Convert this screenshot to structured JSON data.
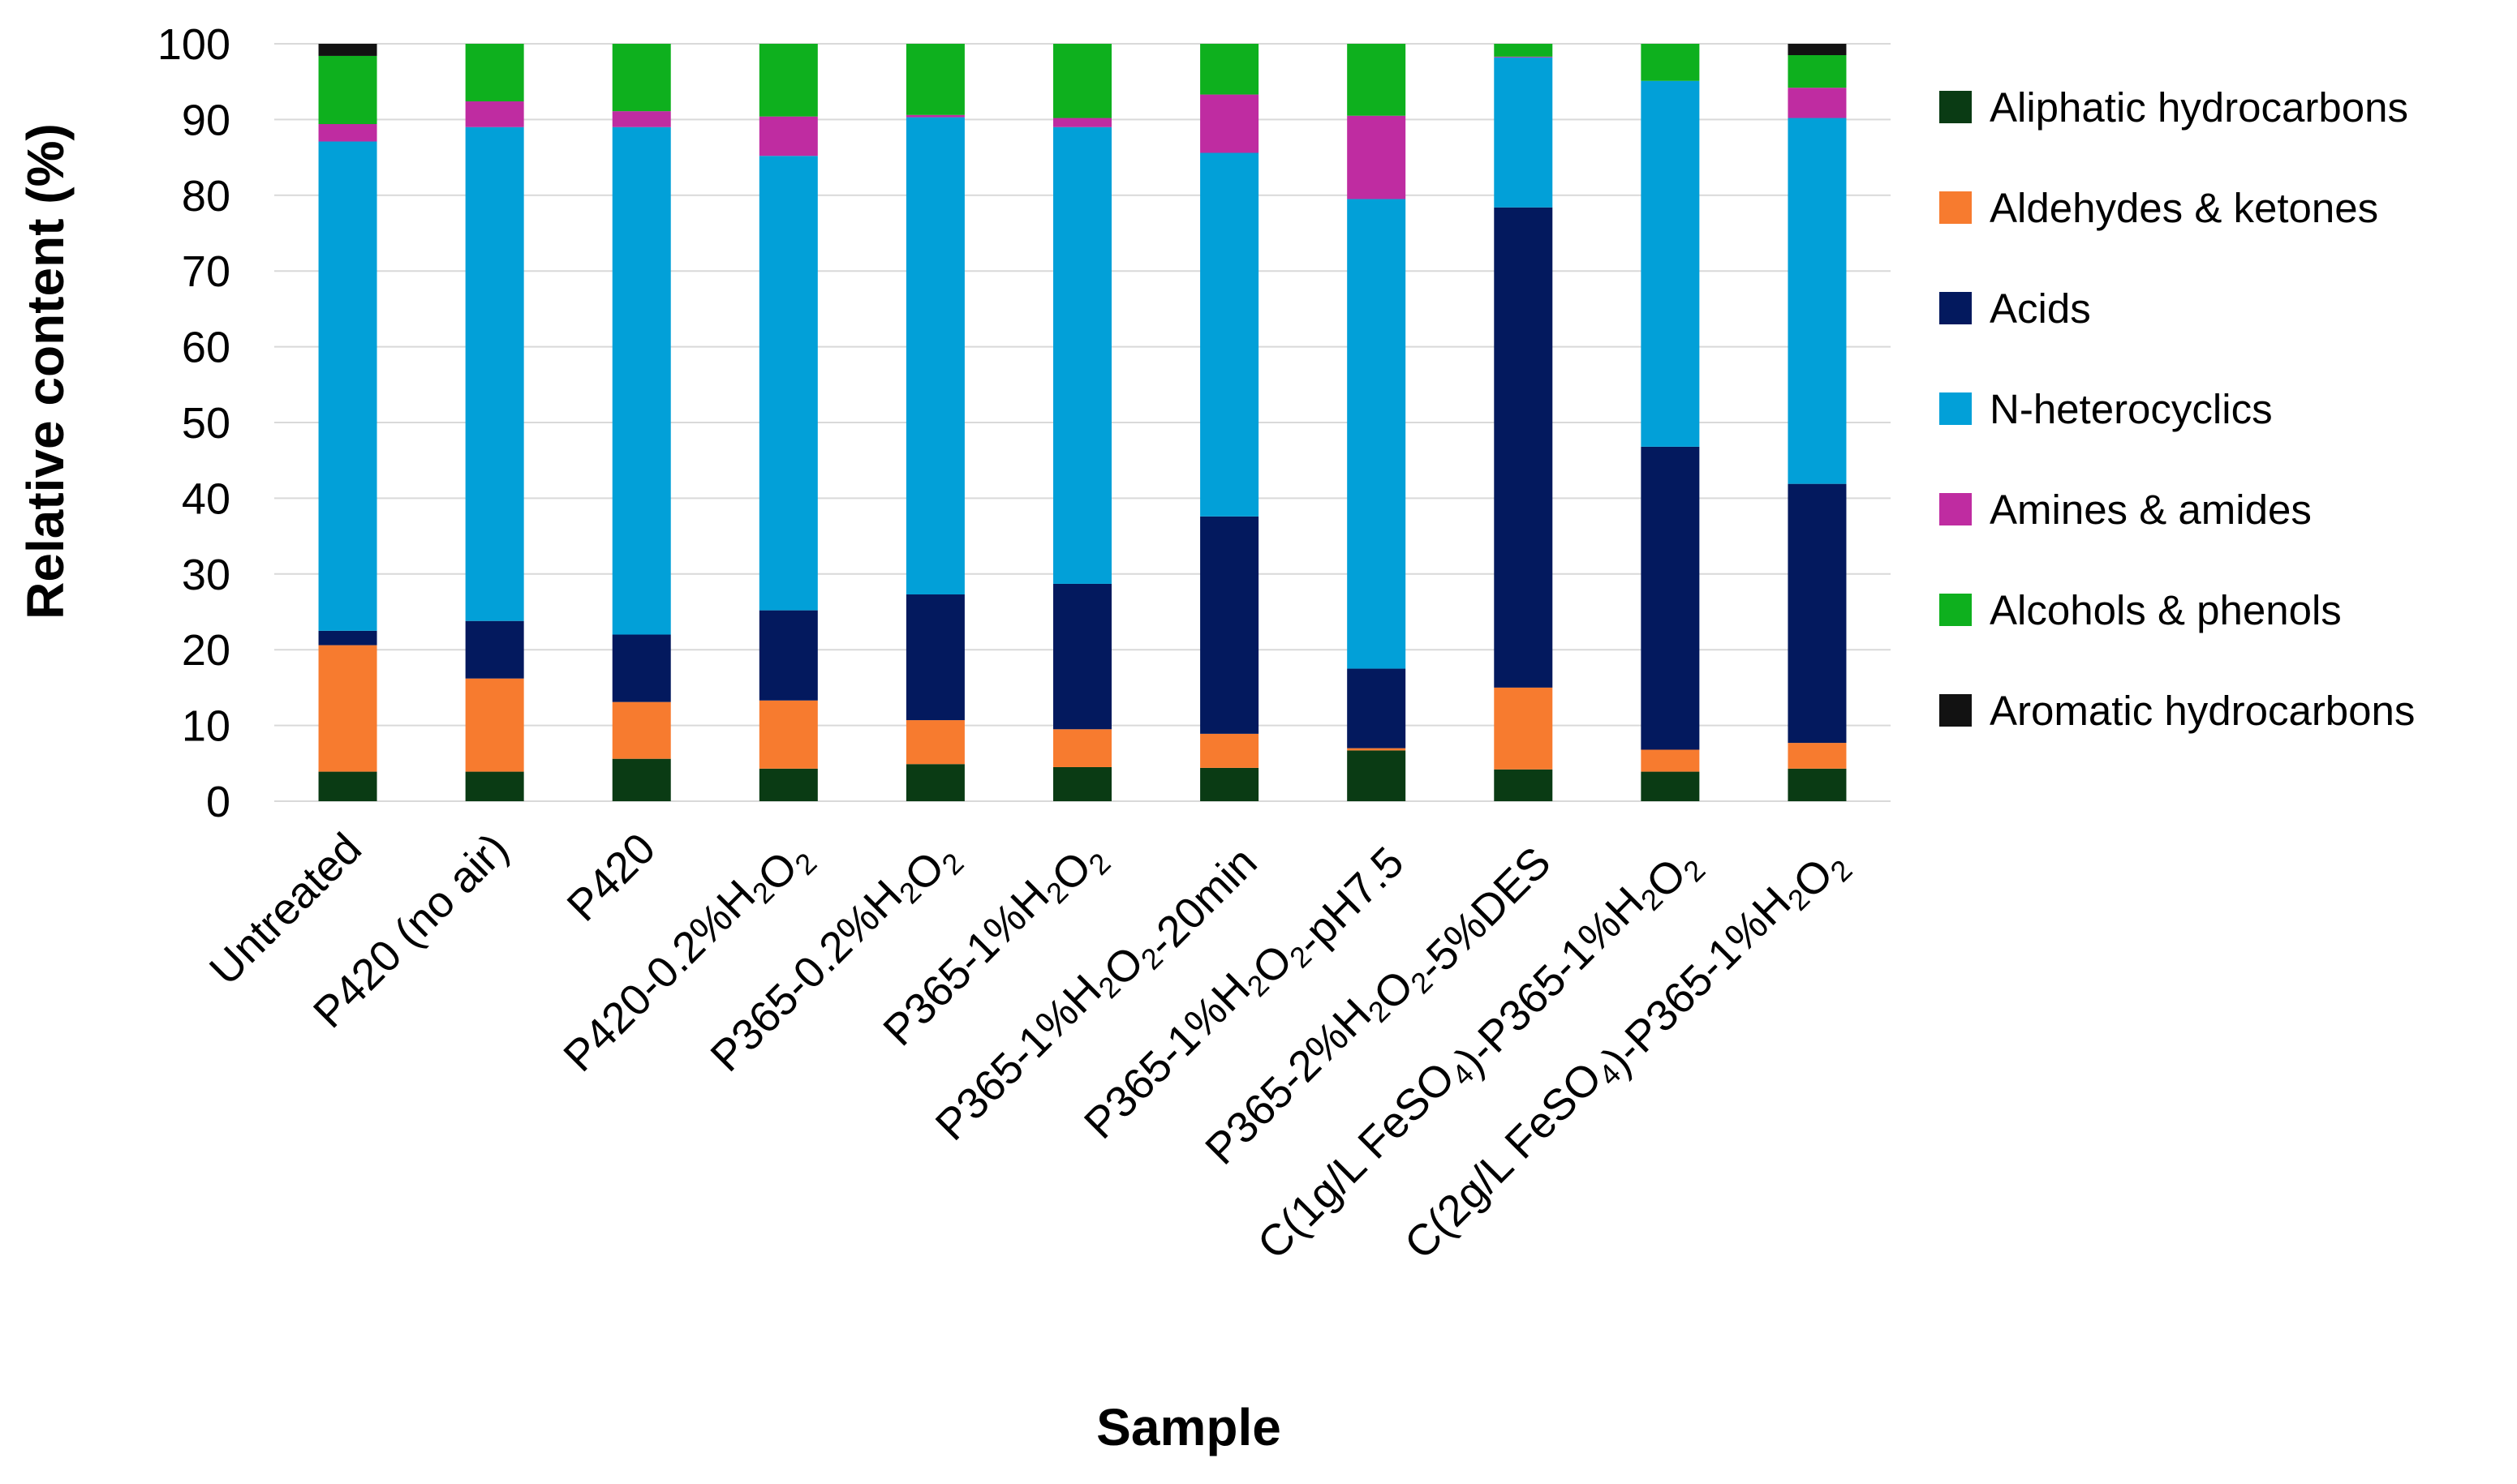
{
  "chart_data": {
    "type": "bar",
    "stacked": true,
    "title": "",
    "xlabel": "Sample",
    "ylabel": "Relative content  (%)",
    "ylim": [
      0,
      100
    ],
    "yticks": [
      "0",
      "10",
      "20",
      "30",
      "40",
      "50",
      "60",
      "70",
      "80",
      "90",
      "100"
    ],
    "grid": true,
    "legend_position": "right",
    "categories": [
      "Untreated",
      "P420 (no air)",
      "P420",
      "P420-0.2%H2O2",
      "P365-0.2%H2O2",
      "P365-1%H2O2",
      "P365-1%H2O2-20min",
      "P365-1%H2O2-pH7.5",
      "P365-2%H2O2-5%DES",
      "C(1g/L FeSO4)-P365-1%H2O2",
      "C(2g/L FeSO4)-P365-1%H2O2"
    ],
    "series": [
      {
        "name": "Aliphatic hydrocarbons",
        "color": "#0a3b14",
        "values": [
          3.9,
          3.9,
          5.6,
          4.3,
          4.9,
          4.5,
          4.4,
          6.7,
          4.2,
          3.9,
          4.3
        ]
      },
      {
        "name": "Aldehydes & ketones",
        "color": "#f77b2f",
        "values": [
          16.7,
          12.3,
          7.5,
          9.0,
          5.8,
          5.0,
          4.5,
          0.3,
          10.8,
          2.9,
          3.4
        ]
      },
      {
        "name": "Acids",
        "color": "#03195e",
        "values": [
          1.9,
          7.6,
          8.9,
          11.9,
          16.6,
          19.2,
          28.7,
          10.5,
          63.4,
          40.0,
          34.2
        ]
      },
      {
        "name": "N-heterocyclics",
        "color": "#02a0d8",
        "values": [
          64.6,
          65.2,
          67.0,
          60.0,
          63.0,
          60.3,
          48.0,
          62.0,
          19.8,
          48.3,
          48.3
        ]
      },
      {
        "name": "Amines & amides",
        "color": "#bf2ca1",
        "values": [
          2.3,
          3.4,
          2.1,
          5.2,
          0.3,
          1.2,
          7.7,
          11.0,
          0.1,
          0.0,
          4.0
        ]
      },
      {
        "name": "Alcohols & phenols",
        "color": "#0eb01e",
        "values": [
          9.0,
          7.6,
          8.9,
          9.6,
          9.4,
          9.8,
          6.7,
          9.5,
          1.7,
          4.9,
          4.3
        ]
      },
      {
        "name": "Aromatic hydrocarbons",
        "color": "#121212",
        "values": [
          1.6,
          0.0,
          0.0,
          0.0,
          0.0,
          0.0,
          0.0,
          0.0,
          0.0,
          0.0,
          1.5
        ]
      }
    ]
  }
}
